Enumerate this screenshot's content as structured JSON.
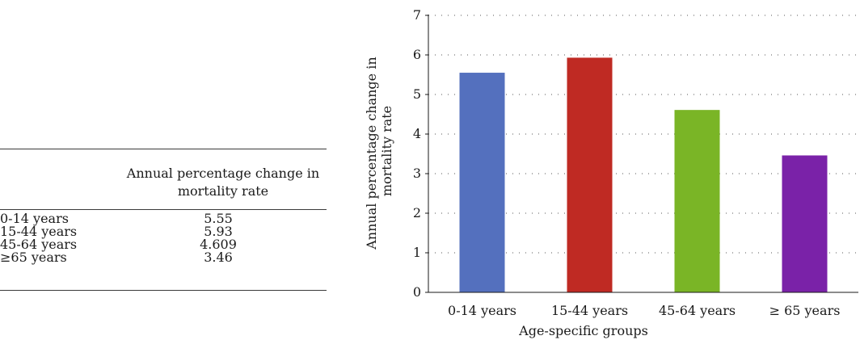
{
  "table": {
    "header": "Annual percentage change in mortality rate",
    "rows": [
      {
        "group": "0-14 years",
        "value": "5.55"
      },
      {
        "group": "15-44 years",
        "value": "5.93"
      },
      {
        "group": "45-64 years",
        "value": "4.609"
      },
      {
        "group": "≥65 years",
        "value": "3.46"
      }
    ]
  },
  "chart_data": {
    "type": "bar",
    "categories": [
      "0-14 years",
      "15-44 years",
      "45-64 years",
      "≥ 65 years"
    ],
    "values": [
      5.55,
      5.93,
      4.609,
      3.46
    ],
    "colors": [
      "#5470be",
      "#bf2a23",
      "#7ab526",
      "#7a22a8"
    ],
    "xlabel": "Age-specific groups",
    "ylabel_lines": [
      "Annual percentage change in",
      "mortality rate"
    ],
    "ylim": [
      0,
      7
    ],
    "yticks": [
      0,
      1,
      2,
      3,
      4,
      5,
      6,
      7
    ],
    "grid": true
  }
}
